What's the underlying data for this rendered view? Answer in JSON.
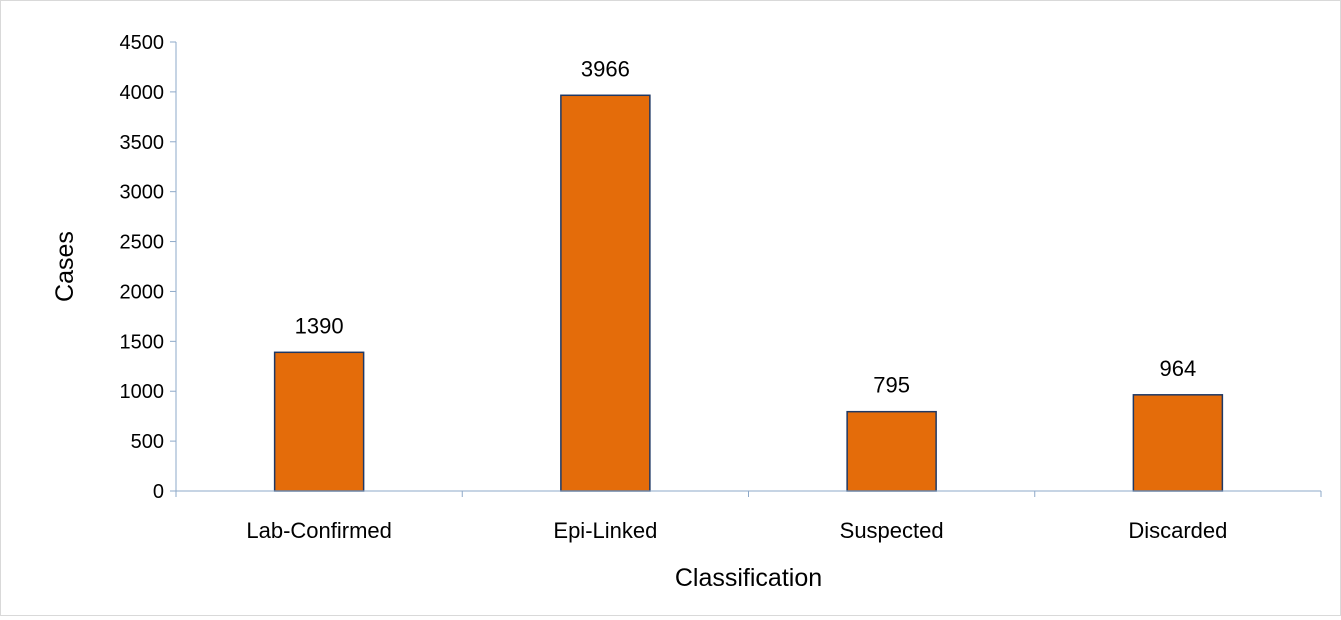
{
  "chart_data": {
    "type": "bar",
    "categories": [
      "Lab-Confirmed",
      "Epi-Linked",
      "Suspected",
      "Discarded"
    ],
    "values": [
      1390,
      3966,
      795,
      964
    ],
    "data_labels": [
      "1390",
      "3966",
      "795",
      "964"
    ],
    "title": "",
    "xlabel": "Classification",
    "ylabel": "Cases",
    "ylim": [
      0,
      4500
    ],
    "yticks": [
      0,
      500,
      1000,
      1500,
      2000,
      2500,
      3000,
      3500,
      4000,
      4500
    ],
    "ytick_labels": [
      "0",
      "500",
      "1000",
      "1500",
      "2000",
      "2500",
      "3000",
      "3500",
      "4000",
      "4500"
    ],
    "grid": false,
    "legend": "none",
    "bar_color": "#E46C0A",
    "bar_edge_color": "#1F3864",
    "axis_color": "#8EA9C8"
  }
}
